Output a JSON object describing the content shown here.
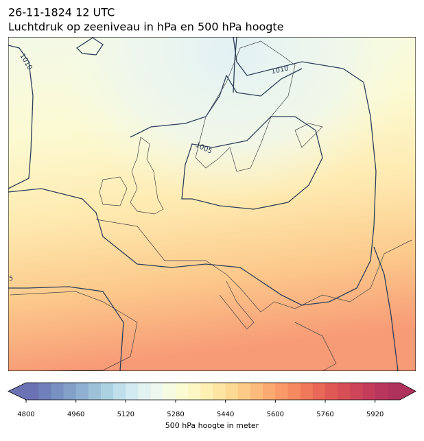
{
  "header": {
    "title": "26-11-1824 12 UTC",
    "subtitle": "Luchtdruk op zeeniveau in hPa en 500 hPa hoogte"
  },
  "map": {
    "contour_labels": [
      "1010",
      "1010",
      "1005",
      "5"
    ]
  },
  "colorbar": {
    "label": "500 hPa hoogte in meter",
    "range": [
      4800,
      6000
    ],
    "ticks": [
      4800,
      4960,
      5120,
      5280,
      5440,
      5600,
      5760,
      5920
    ],
    "colors": [
      "#6a72b4",
      "#6f80ba",
      "#7890c2",
      "#82a0c8",
      "#8fb0d0",
      "#9dc1d8",
      "#acd2e2",
      "#bfe0ea",
      "#d2ebf0",
      "#e3f3f2",
      "#eff8ee",
      "#f6fbe2",
      "#fbfcd2",
      "#fdf8c3",
      "#fef0b2",
      "#fee5a2",
      "#fed994",
      "#fdcb87",
      "#fcbb7b",
      "#fbaa71",
      "#f99a68",
      "#f58a60",
      "#f0785b",
      "#e96857",
      "#e05a55",
      "#d64f56",
      "#cc4559",
      "#c33d5b",
      "#b9375c",
      "#af325c"
    ]
  }
}
